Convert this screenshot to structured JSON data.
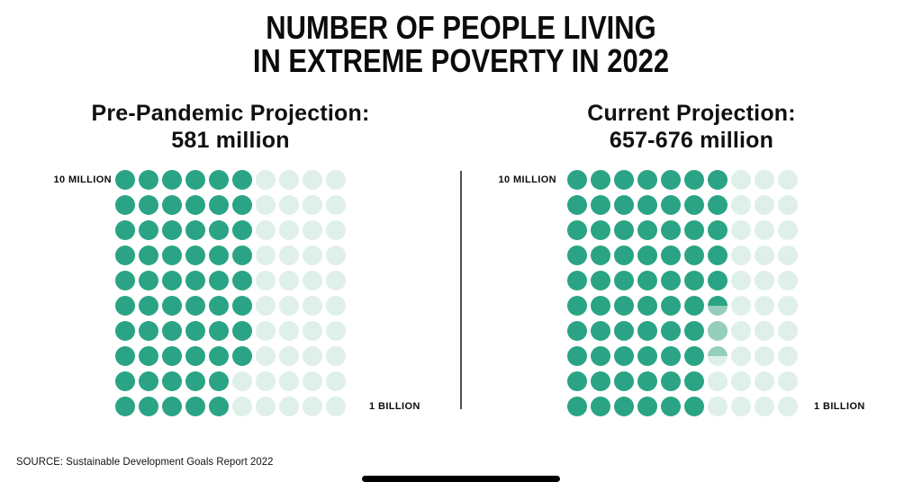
{
  "title": {
    "line1": "NUMBER OF PEOPLE LIVING",
    "line2": "IN EXTREME POVERTY IN 2022"
  },
  "source": "SOURCE: Sustainable Development Goals Report 2022",
  "chart_data": {
    "type": "pictogram",
    "title": "Number of people living in extreme poverty in 2022",
    "dot_unit_million": 10,
    "scale_labels": {
      "start": "10 MILLION",
      "end": "1 BILLION"
    },
    "colors": {
      "solid": "#2AA484",
      "mid": "#95CEBC",
      "pale": "#DFEFE9"
    },
    "panels": [
      {
        "title_line1": "Pre-Pandemic Projection:",
        "title_line2": "581 million",
        "value_million": 581,
        "grid": {
          "rows": 10,
          "cols": 10
        },
        "row_fill": [
          6,
          6,
          6,
          6,
          6,
          6,
          6,
          6,
          5,
          5
        ],
        "partial_dots": []
      },
      {
        "title_line1": "Current Projection:",
        "title_line2": "657-676 million",
        "value_million_min": 657,
        "value_million_max": 676,
        "grid": {
          "rows": 10,
          "cols": 10
        },
        "row_fill": [
          7,
          7,
          7,
          7,
          7,
          6,
          6,
          6,
          6,
          6
        ],
        "partial_dots": [
          {
            "row": 6,
            "col": 7,
            "style": "top-solid-bottom-mid"
          },
          {
            "row": 7,
            "col": 7,
            "style": "full-mid"
          },
          {
            "row": 8,
            "col": 7,
            "style": "top-mid-bottom-pale"
          }
        ]
      }
    ]
  }
}
